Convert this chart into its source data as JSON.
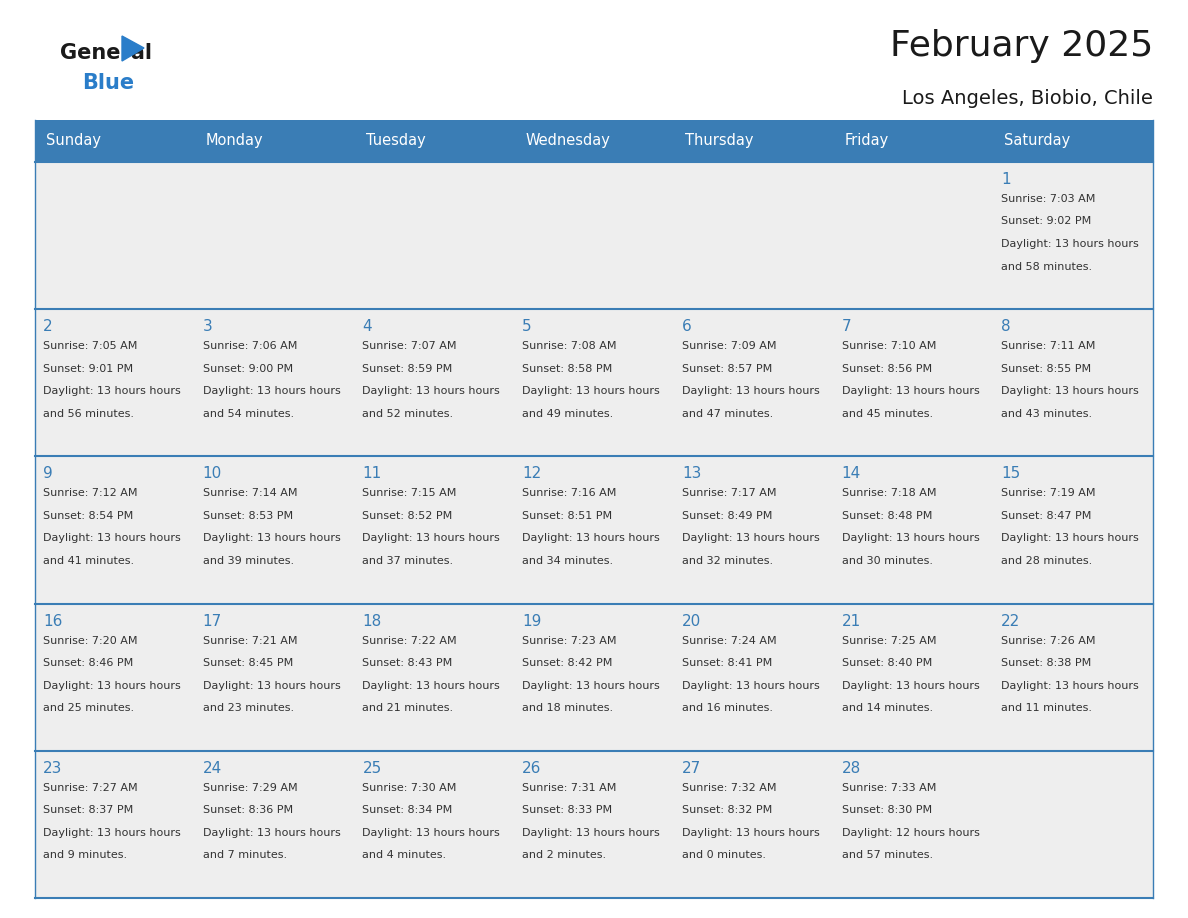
{
  "title": "February 2025",
  "subtitle": "Los Angeles, Biobio, Chile",
  "header_bg_color": "#3a7db5",
  "header_text_color": "#ffffff",
  "cell_bg_color": "#eeeeee",
  "background_color": "#ffffff",
  "day_number_color": "#3a7db5",
  "text_color": "#333333",
  "line_color": "#3a7db5",
  "days_of_week": [
    "Sunday",
    "Monday",
    "Tuesday",
    "Wednesday",
    "Thursday",
    "Friday",
    "Saturday"
  ],
  "weeks": [
    [
      {
        "day": null,
        "sunrise": null,
        "sunset": null,
        "daylight": null
      },
      {
        "day": null,
        "sunrise": null,
        "sunset": null,
        "daylight": null
      },
      {
        "day": null,
        "sunrise": null,
        "sunset": null,
        "daylight": null
      },
      {
        "day": null,
        "sunrise": null,
        "sunset": null,
        "daylight": null
      },
      {
        "day": null,
        "sunrise": null,
        "sunset": null,
        "daylight": null
      },
      {
        "day": null,
        "sunrise": null,
        "sunset": null,
        "daylight": null
      },
      {
        "day": 1,
        "sunrise": "7:03 AM",
        "sunset": "9:02 PM",
        "daylight": "13 hours and 58 minutes."
      }
    ],
    [
      {
        "day": 2,
        "sunrise": "7:05 AM",
        "sunset": "9:01 PM",
        "daylight": "13 hours and 56 minutes."
      },
      {
        "day": 3,
        "sunrise": "7:06 AM",
        "sunset": "9:00 PM",
        "daylight": "13 hours and 54 minutes."
      },
      {
        "day": 4,
        "sunrise": "7:07 AM",
        "sunset": "8:59 PM",
        "daylight": "13 hours and 52 minutes."
      },
      {
        "day": 5,
        "sunrise": "7:08 AM",
        "sunset": "8:58 PM",
        "daylight": "13 hours and 49 minutes."
      },
      {
        "day": 6,
        "sunrise": "7:09 AM",
        "sunset": "8:57 PM",
        "daylight": "13 hours and 47 minutes."
      },
      {
        "day": 7,
        "sunrise": "7:10 AM",
        "sunset": "8:56 PM",
        "daylight": "13 hours and 45 minutes."
      },
      {
        "day": 8,
        "sunrise": "7:11 AM",
        "sunset": "8:55 PM",
        "daylight": "13 hours and 43 minutes."
      }
    ],
    [
      {
        "day": 9,
        "sunrise": "7:12 AM",
        "sunset": "8:54 PM",
        "daylight": "13 hours and 41 minutes."
      },
      {
        "day": 10,
        "sunrise": "7:14 AM",
        "sunset": "8:53 PM",
        "daylight": "13 hours and 39 minutes."
      },
      {
        "day": 11,
        "sunrise": "7:15 AM",
        "sunset": "8:52 PM",
        "daylight": "13 hours and 37 minutes."
      },
      {
        "day": 12,
        "sunrise": "7:16 AM",
        "sunset": "8:51 PM",
        "daylight": "13 hours and 34 minutes."
      },
      {
        "day": 13,
        "sunrise": "7:17 AM",
        "sunset": "8:49 PM",
        "daylight": "13 hours and 32 minutes."
      },
      {
        "day": 14,
        "sunrise": "7:18 AM",
        "sunset": "8:48 PM",
        "daylight": "13 hours and 30 minutes."
      },
      {
        "day": 15,
        "sunrise": "7:19 AM",
        "sunset": "8:47 PM",
        "daylight": "13 hours and 28 minutes."
      }
    ],
    [
      {
        "day": 16,
        "sunrise": "7:20 AM",
        "sunset": "8:46 PM",
        "daylight": "13 hours and 25 minutes."
      },
      {
        "day": 17,
        "sunrise": "7:21 AM",
        "sunset": "8:45 PM",
        "daylight": "13 hours and 23 minutes."
      },
      {
        "day": 18,
        "sunrise": "7:22 AM",
        "sunset": "8:43 PM",
        "daylight": "13 hours and 21 minutes."
      },
      {
        "day": 19,
        "sunrise": "7:23 AM",
        "sunset": "8:42 PM",
        "daylight": "13 hours and 18 minutes."
      },
      {
        "day": 20,
        "sunrise": "7:24 AM",
        "sunset": "8:41 PM",
        "daylight": "13 hours and 16 minutes."
      },
      {
        "day": 21,
        "sunrise": "7:25 AM",
        "sunset": "8:40 PM",
        "daylight": "13 hours and 14 minutes."
      },
      {
        "day": 22,
        "sunrise": "7:26 AM",
        "sunset": "8:38 PM",
        "daylight": "13 hours and 11 minutes."
      }
    ],
    [
      {
        "day": 23,
        "sunrise": "7:27 AM",
        "sunset": "8:37 PM",
        "daylight": "13 hours and 9 minutes."
      },
      {
        "day": 24,
        "sunrise": "7:29 AM",
        "sunset": "8:36 PM",
        "daylight": "13 hours and 7 minutes."
      },
      {
        "day": 25,
        "sunrise": "7:30 AM",
        "sunset": "8:34 PM",
        "daylight": "13 hours and 4 minutes."
      },
      {
        "day": 26,
        "sunrise": "7:31 AM",
        "sunset": "8:33 PM",
        "daylight": "13 hours and 2 minutes."
      },
      {
        "day": 27,
        "sunrise": "7:32 AM",
        "sunset": "8:32 PM",
        "daylight": "13 hours and 0 minutes."
      },
      {
        "day": 28,
        "sunrise": "7:33 AM",
        "sunset": "8:30 PM",
        "daylight": "12 hours and 57 minutes."
      },
      {
        "day": null,
        "sunrise": null,
        "sunset": null,
        "daylight": null
      }
    ]
  ]
}
